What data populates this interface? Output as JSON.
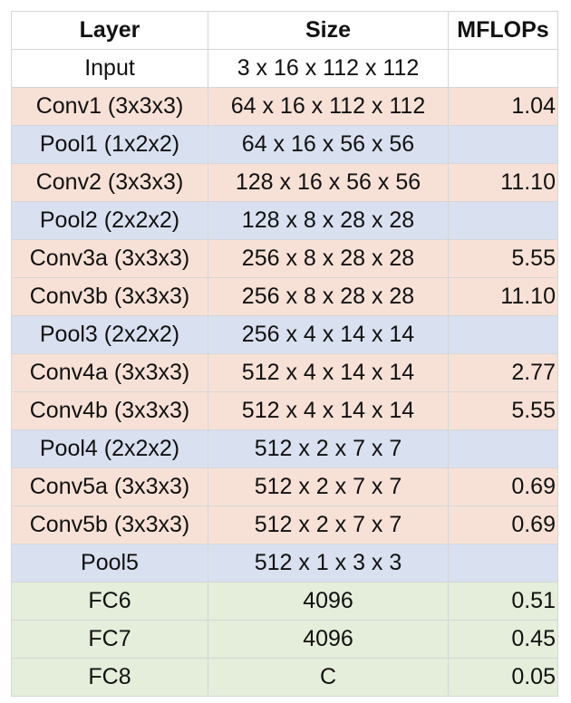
{
  "chart_data": {
    "type": "table",
    "columns": [
      "Layer",
      "Size",
      "MFLOPs"
    ],
    "rows": [
      {
        "layer": "Input",
        "size": "3 x 16 x 112 x 112",
        "mflops": "",
        "kind": "input"
      },
      {
        "layer": "Conv1 (3x3x3)",
        "size": "64 x 16 x 112 x 112",
        "mflops": "1.04",
        "kind": "conv"
      },
      {
        "layer": "Pool1 (1x2x2)",
        "size": "64 x 16 x 56 x 56",
        "mflops": "",
        "kind": "pool"
      },
      {
        "layer": "Conv2 (3x3x3)",
        "size": "128 x 16 x 56 x 56",
        "mflops": "11.10",
        "kind": "conv"
      },
      {
        "layer": "Pool2 (2x2x2)",
        "size": "128 x 8 x 28 x 28",
        "mflops": "",
        "kind": "pool"
      },
      {
        "layer": "Conv3a (3x3x3)",
        "size": "256 x 8 x 28 x 28",
        "mflops": "5.55",
        "kind": "conv"
      },
      {
        "layer": "Conv3b (3x3x3)",
        "size": "256 x 8 x 28 x 28",
        "mflops": "11.10",
        "kind": "conv"
      },
      {
        "layer": "Pool3 (2x2x2)",
        "size": "256 x 4 x 14 x 14",
        "mflops": "",
        "kind": "pool"
      },
      {
        "layer": "Conv4a (3x3x3)",
        "size": "512 x 4 x 14 x 14",
        "mflops": "2.77",
        "kind": "conv"
      },
      {
        "layer": "Conv4b (3x3x3)",
        "size": "512 x 4 x 14 x 14",
        "mflops": "5.55",
        "kind": "conv"
      },
      {
        "layer": "Pool4 (2x2x2)",
        "size": "512 x 2 x 7 x 7",
        "mflops": "",
        "kind": "pool"
      },
      {
        "layer": "Conv5a (3x3x3)",
        "size": "512 x 2 x 7 x 7",
        "mflops": "0.69",
        "kind": "conv"
      },
      {
        "layer": "Conv5b (3x3x3)",
        "size": "512 x 2 x 7 x 7",
        "mflops": "0.69",
        "kind": "conv"
      },
      {
        "layer": "Pool5",
        "size": "512 x 1 x 3 x 3",
        "mflops": "",
        "kind": "pool"
      },
      {
        "layer": "FC6",
        "size": "4096",
        "mflops": "0.51",
        "kind": "fc"
      },
      {
        "layer": "FC7",
        "size": "4096",
        "mflops": "0.45",
        "kind": "fc"
      },
      {
        "layer": "FC8",
        "size": "C",
        "mflops": "0.05",
        "kind": "fc"
      }
    ]
  },
  "row_colors": {
    "input": "#ffffff",
    "conv": "#f7e1d6",
    "pool": "#d9e0f0",
    "fc": "#e4eedb"
  }
}
